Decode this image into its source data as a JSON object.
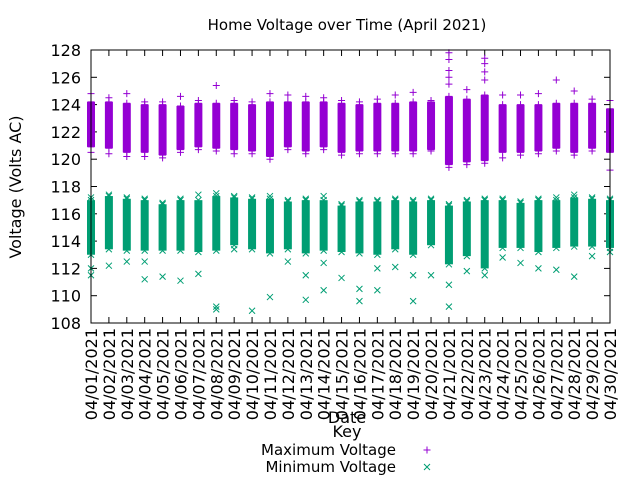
{
  "chart_data": {
    "type": "scatter",
    "title": "Home Voltage over Time (April 2021)",
    "xlabel": "Date",
    "ylabel": "Voltage (Volts AC)",
    "ylim": [
      108,
      128
    ],
    "yticks": [
      108,
      110,
      112,
      114,
      116,
      118,
      120,
      122,
      124,
      126,
      128
    ],
    "categories": [
      "04/01/2021",
      "04/02/2021",
      "04/03/2021",
      "04/04/2021",
      "04/05/2021",
      "04/06/2021",
      "04/07/2021",
      "04/08/2021",
      "04/09/2021",
      "04/10/2021",
      "04/11/2021",
      "04/12/2021",
      "04/13/2021",
      "04/14/2021",
      "04/15/2021",
      "04/16/2021",
      "04/17/2021",
      "04/18/2021",
      "04/19/2021",
      "04/20/2021",
      "04/21/2021",
      "04/22/2021",
      "04/23/2021",
      "04/24/2021",
      "04/25/2021",
      "04/26/2021",
      "04/27/2021",
      "04/28/2021",
      "04/29/2021",
      "04/30/2021"
    ],
    "legend": {
      "title": "Key",
      "placement": "bottom-center"
    },
    "series": [
      {
        "name": "Maximum Voltage",
        "marker": "plus",
        "color": "#9400d3",
        "band_low": [
          120.9,
          120.8,
          120.5,
          120.5,
          120.3,
          120.7,
          120.9,
          120.8,
          120.7,
          120.6,
          120.2,
          120.9,
          120.6,
          120.9,
          120.5,
          120.6,
          120.6,
          120.6,
          120.6,
          120.7,
          119.6,
          119.8,
          119.9,
          120.5,
          120.5,
          120.6,
          120.8,
          120.5,
          120.8,
          120.5
        ],
        "band_high": [
          124.2,
          124.2,
          124.1,
          124.0,
          124.0,
          123.9,
          124.1,
          124.1,
          124.1,
          124.0,
          124.2,
          124.2,
          124.2,
          124.2,
          124.1,
          124.0,
          124.1,
          124.1,
          124.2,
          124.2,
          124.6,
          124.4,
          124.7,
          124.0,
          124.0,
          124.0,
          124.1,
          124.1,
          124.1,
          123.7
        ],
        "outliers_high": [
          [
            124.8
          ],
          [
            124.5
          ],
          [
            124.8
          ],
          [
            124.2
          ],
          [
            124.2
          ],
          [
            124.6
          ],
          [
            124.3
          ],
          [
            125.4
          ],
          [
            124.3
          ],
          [
            124.2
          ],
          [
            124.8
          ],
          [
            124.7
          ],
          [
            124.6
          ],
          [
            124.5
          ],
          [
            124.3
          ],
          [
            124.2
          ],
          [
            124.4
          ],
          [
            124.7
          ],
          [
            124.9
          ],
          [
            124.3
          ],
          [
            127.8,
            127.3,
            126.5,
            126.0,
            125.5
          ],
          [
            125.1
          ],
          [
            127.4,
            127.0,
            126.4,
            125.8
          ],
          [
            124.7
          ],
          [
            124.7
          ],
          [
            124.8
          ],
          [
            125.8
          ],
          [
            125.0
          ],
          [
            124.4
          ],
          [
            124.3
          ]
        ],
        "outliers_low": [
          [
            120.5
          ],
          [
            120.4
          ],
          [
            120.2
          ],
          [
            120.2
          ],
          [
            120.1
          ],
          [
            120.5
          ],
          [
            120.7
          ],
          [
            120.6
          ],
          [
            120.4
          ],
          [
            120.4
          ],
          [
            120.0
          ],
          [
            120.7
          ],
          [
            120.4
          ],
          [
            120.7
          ],
          [
            120.3
          ],
          [
            120.4
          ],
          [
            120.4
          ],
          [
            120.4
          ],
          [
            120.4
          ],
          [
            120.6
          ],
          [
            119.4
          ],
          [
            119.6
          ],
          [
            119.7
          ],
          [
            120.1
          ],
          [
            120.3
          ],
          [
            120.4
          ],
          [
            120.6
          ],
          [
            120.3
          ],
          [
            120.6
          ],
          [
            119.2
          ]
        ]
      },
      {
        "name": "Minimum Voltage",
        "marker": "x",
        "color": "#009e73",
        "band_low": [
          113.0,
          113.4,
          113.3,
          113.3,
          113.3,
          113.3,
          113.2,
          113.3,
          113.7,
          113.4,
          113.1,
          113.4,
          113.1,
          113.3,
          113.2,
          113.1,
          113.0,
          113.4,
          113.0,
          113.7,
          112.3,
          112.9,
          112.0,
          113.5,
          113.5,
          113.2,
          113.5,
          113.6,
          113.6,
          113.5
        ],
        "band_high": [
          117.0,
          117.3,
          117.1,
          117.0,
          116.7,
          117.0,
          117.0,
          117.3,
          117.2,
          117.1,
          117.1,
          116.9,
          117.0,
          117.0,
          116.6,
          116.9,
          116.9,
          117.0,
          116.9,
          117.0,
          116.6,
          116.9,
          117.0,
          117.0,
          116.8,
          117.0,
          117.0,
          117.2,
          117.1,
          117.0
        ],
        "outliers_low": [
          [
            111.5,
            112.0
          ],
          [
            112.2
          ],
          [
            112.5
          ],
          [
            111.2,
            112.5
          ],
          [
            111.4
          ],
          [
            111.1
          ],
          [
            111.6
          ],
          [
            109.0,
            109.2
          ],
          [
            113.4
          ],
          [
            108.9
          ],
          [
            109.9
          ],
          [
            112.5
          ],
          [
            109.7,
            111.5
          ],
          [
            110.4,
            112.4
          ],
          [
            111.3
          ],
          [
            109.6,
            110.5
          ],
          [
            110.4,
            112.0
          ],
          [
            112.1
          ],
          [
            109.6,
            111.5
          ],
          [
            111.5
          ],
          [
            109.2,
            110.8
          ],
          [
            111.8
          ],
          [
            111.5
          ],
          [
            112.8
          ],
          [
            112.4
          ],
          [
            112.0
          ],
          [
            111.9
          ],
          [
            111.4
          ],
          [
            112.9
          ],
          [
            113.2
          ]
        ],
        "outliers_high": [
          [
            117.2
          ],
          [
            117.4
          ],
          [
            117.2
          ],
          [
            117.1
          ],
          [
            116.8
          ],
          [
            117.1
          ],
          [
            117.4
          ],
          [
            117.5
          ],
          [
            117.3
          ],
          [
            117.2
          ],
          [
            117.3
          ],
          [
            117.0
          ],
          [
            117.1
          ],
          [
            117.3
          ],
          [
            116.7
          ],
          [
            117.0
          ],
          [
            117.0
          ],
          [
            117.1
          ],
          [
            117.0
          ],
          [
            117.1
          ],
          [
            116.7
          ],
          [
            117.0
          ],
          [
            117.1
          ],
          [
            117.1
          ],
          [
            116.9
          ],
          [
            117.1
          ],
          [
            117.2
          ],
          [
            117.4
          ],
          [
            117.2
          ],
          [
            117.1
          ]
        ]
      }
    ]
  }
}
